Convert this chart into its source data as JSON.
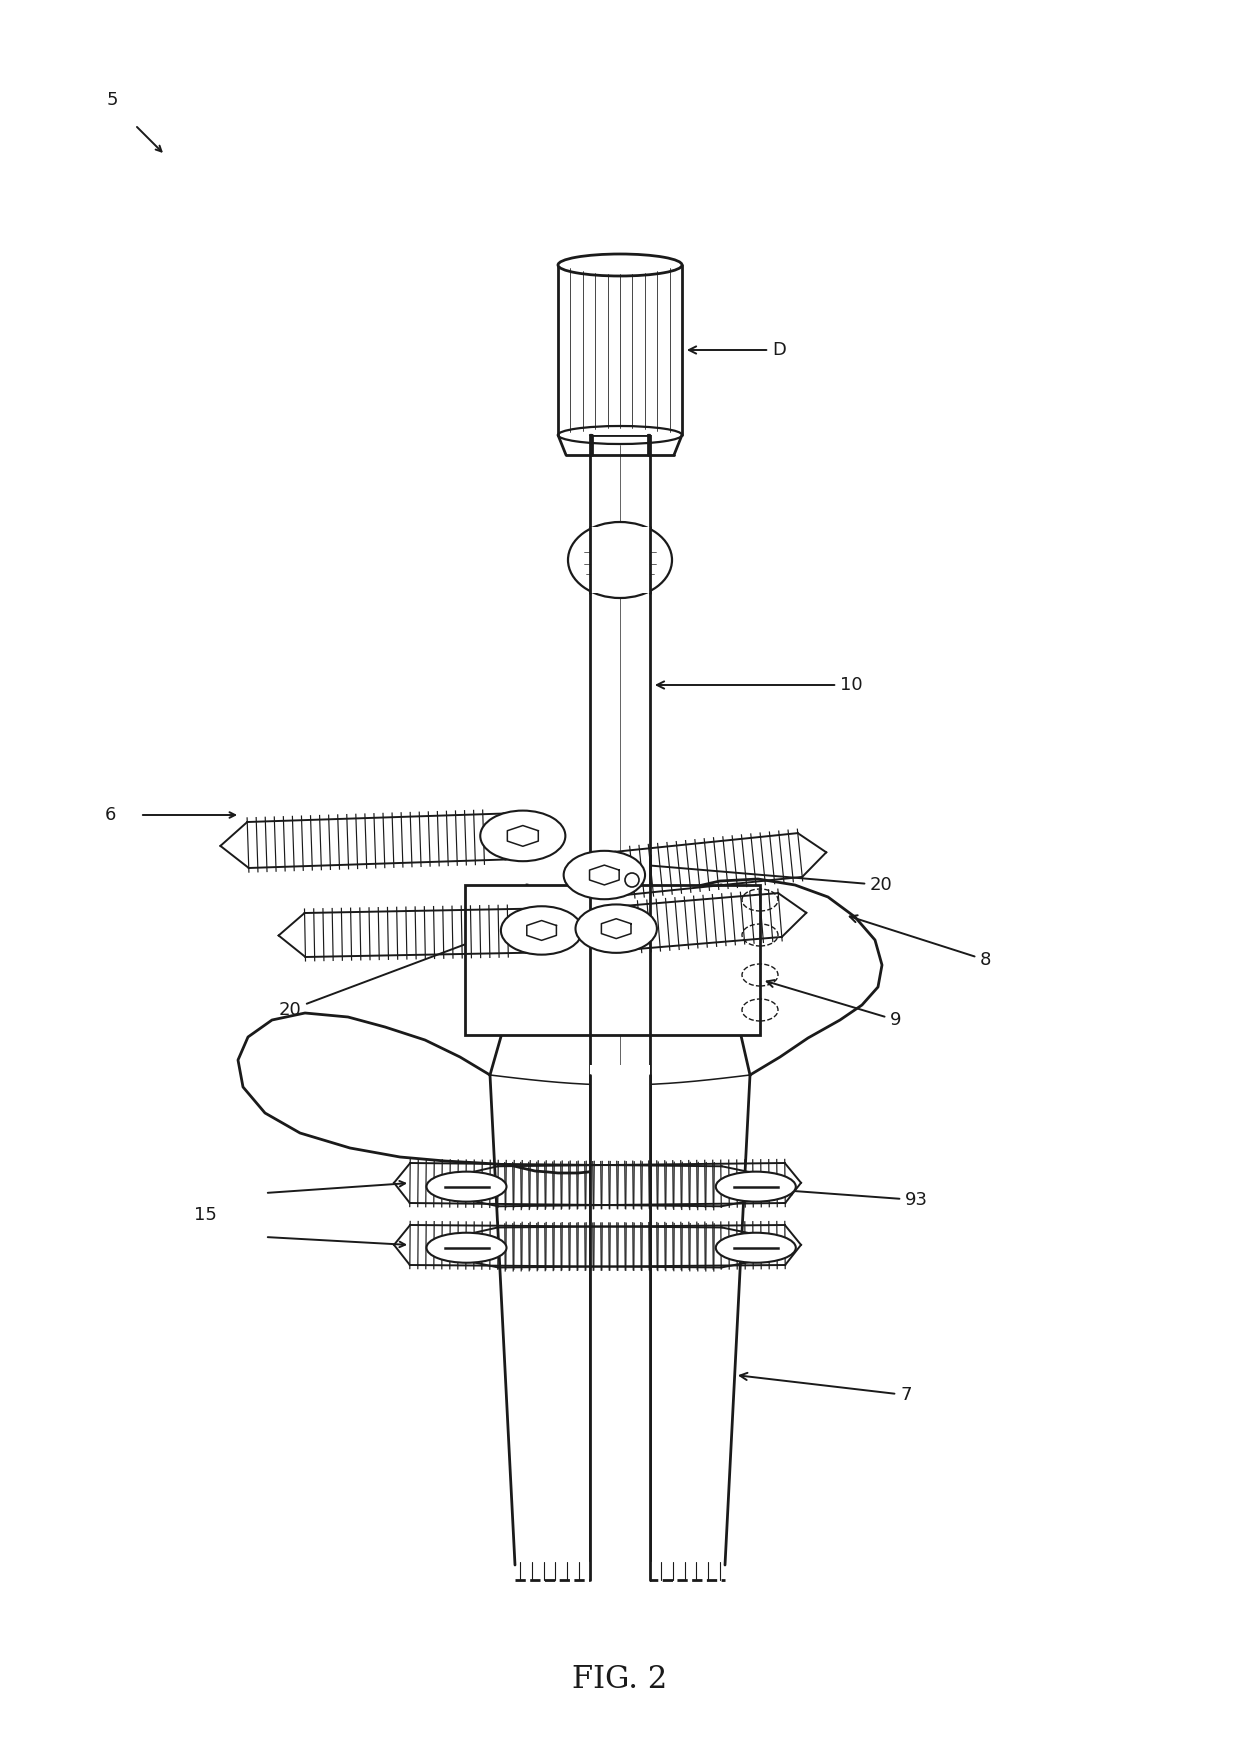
{
  "bg_color": "#ffffff",
  "line_color": "#1a1a1a",
  "fig_width": 12.4,
  "fig_height": 17.55,
  "title": "FIG. 2",
  "lw_main": 1.6,
  "lw_thick": 2.0,
  "lw_thin": 0.8,
  "font_size": 13,
  "title_font_size": 22
}
